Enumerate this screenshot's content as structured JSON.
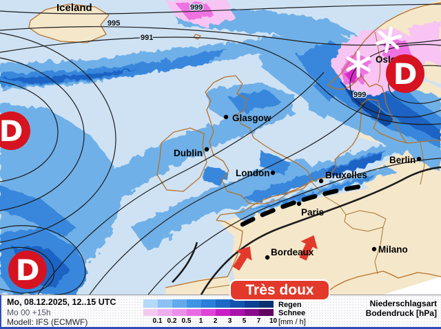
{
  "map": {
    "region_label": "Iceland",
    "cities": [
      {
        "name": "Glasgow"
      },
      {
        "name": "Dublin"
      },
      {
        "name": "London"
      },
      {
        "name": "Bruxelles"
      },
      {
        "name": "Paris"
      },
      {
        "name": "Bordeaux"
      },
      {
        "name": "Berlin"
      },
      {
        "name": "Milano"
      },
      {
        "name": "Oslo"
      }
    ],
    "isobar_labels": [
      {
        "value": "999"
      },
      {
        "value": "995"
      },
      {
        "value": "991"
      },
      {
        "value": "999"
      }
    ],
    "low_markers": [
      {
        "letter": "D"
      },
      {
        "letter": "D"
      },
      {
        "letter": "D"
      }
    ],
    "front_label": {
      "text": "Très doux"
    },
    "symbols": {
      "snowflakes": 2,
      "warm_advection_arrows": 2
    },
    "colors": {
      "land": "#f5e7ca",
      "coastline": "#b5722b",
      "light_rain_wash": "#cfe2f4",
      "low_marker_red": "#d61320",
      "arrow_red": "#e2392b",
      "front_label_red": "#e2392b",
      "isobar": "#1b1b1b"
    }
  },
  "footer": {
    "line1": "Mo, 08.12.2025, 12..15 UTC",
    "line2": "Mo 00 +15h",
    "line3": "Modell: IFS (ECMWF)",
    "legend": {
      "rain_label": "Regen",
      "snow_label": "Schnee",
      "unit": "[mm / h]",
      "ticks": [
        "0.1",
        "0.2",
        "0.5",
        "1",
        "2",
        "3",
        "5",
        "7",
        "10"
      ],
      "rain_colors": [
        "#b5d9f8",
        "#8cc2f2",
        "#62aaec",
        "#3f94e4",
        "#2b7fd8",
        "#1b69c4",
        "#1253ae",
        "#0c3f96",
        "#083070"
      ],
      "snow_colors": [
        "#f3c9f1",
        "#f0aef0",
        "#ec8fea",
        "#e76ee2",
        "#de44d6",
        "#c81ec4",
        "#a912a8",
        "#8a0a8c",
        "#5f045f"
      ]
    },
    "right1": "Niederschlagsart",
    "right2": "Bodendruck [hPa]"
  }
}
